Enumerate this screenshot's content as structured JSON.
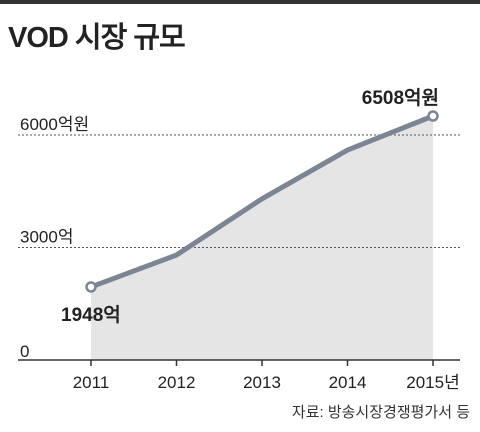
{
  "title": "VOD 시장 규모",
  "source": "자료: 방송시장경쟁평가서 등",
  "colors": {
    "line": "#7b8593",
    "area": "#e5e5e6",
    "grid": "#555555",
    "text": "#222222"
  },
  "chart_data": {
    "type": "area",
    "x": [
      "2011",
      "2012",
      "2013",
      "2014",
      "2015"
    ],
    "x_tick_labels": [
      "2011",
      "2012",
      "2013",
      "2014",
      "2015년"
    ],
    "values": [
      1948,
      2800,
      4300,
      5600,
      6508
    ],
    "y_tick_labels": [
      "0",
      "3000억",
      "6000억원"
    ],
    "y_tick_values": [
      0,
      3000,
      6000
    ],
    "ylim": [
      0,
      6508
    ],
    "annotations": [
      {
        "index": 0,
        "text": "1948억"
      },
      {
        "index": 4,
        "text": "6508억원"
      }
    ],
    "grid": true
  }
}
